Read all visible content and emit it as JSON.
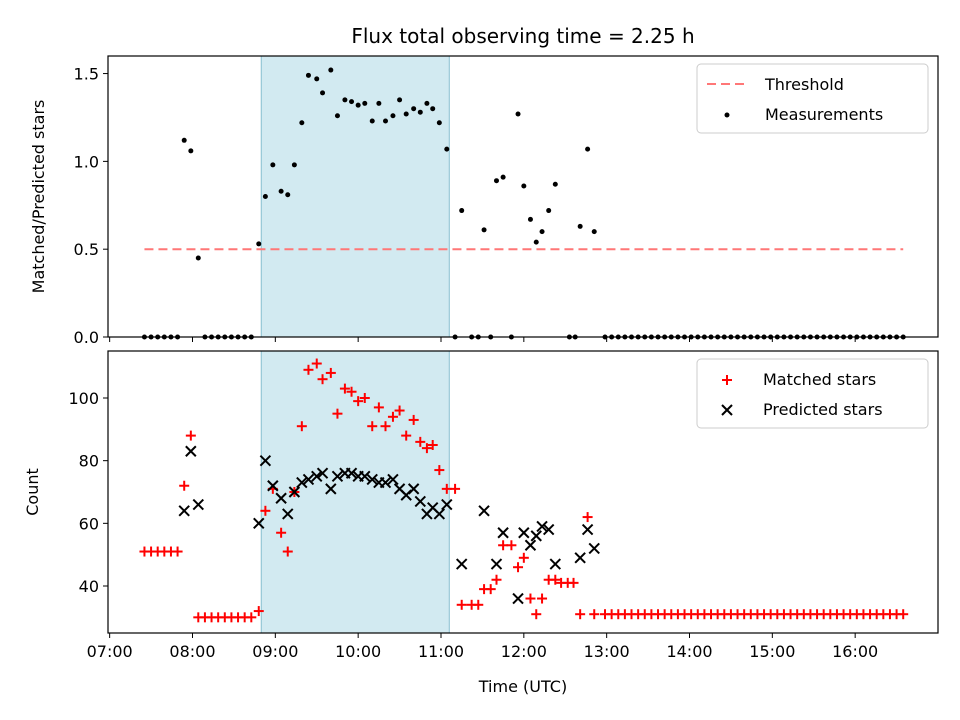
{
  "chart_data": [
    {
      "type": "scatter",
      "title": "Flux total observing time = 2.25 h",
      "xlabel": "",
      "ylabel": "Matched/Predicted stars",
      "xlim": [
        6.98,
        17.0
      ],
      "ylim": [
        0,
        1.6
      ],
      "yticks": [
        "0.0",
        "0.5",
        "1.0",
        "1.5"
      ],
      "shaded_span": [
        8.83,
        11.1
      ],
      "threshold": {
        "name": "Threshold",
        "y": 0.5,
        "x_range": [
          7.42,
          16.58
        ],
        "color": "#ff7777"
      },
      "legend": {
        "position": "top-right",
        "entries": [
          "Threshold",
          "Measurements"
        ]
      },
      "series": [
        {
          "name": "Measurements",
          "color": "#000000",
          "points": [
            [
              7.42,
              0
            ],
            [
              7.5,
              0
            ],
            [
              7.58,
              0
            ],
            [
              7.66,
              0
            ],
            [
              7.74,
              0
            ],
            [
              7.82,
              0
            ],
            [
              7.9,
              1.12
            ],
            [
              7.98,
              1.06
            ],
            [
              8.07,
              0.45
            ],
            [
              8.15,
              0
            ],
            [
              8.23,
              0
            ],
            [
              8.31,
              0
            ],
            [
              8.39,
              0
            ],
            [
              8.47,
              0
            ],
            [
              8.55,
              0
            ],
            [
              8.63,
              0
            ],
            [
              8.71,
              0
            ],
            [
              8.8,
              0.53
            ],
            [
              8.88,
              0.8
            ],
            [
              8.97,
              0.98
            ],
            [
              9.07,
              0.83
            ],
            [
              9.15,
              0.81
            ],
            [
              9.23,
              0.98
            ],
            [
              9.32,
              1.22
            ],
            [
              9.4,
              1.49
            ],
            [
              9.5,
              1.47
            ],
            [
              9.57,
              1.39
            ],
            [
              9.67,
              1.52
            ],
            [
              9.75,
              1.26
            ],
            [
              9.84,
              1.35
            ],
            [
              9.92,
              1.34
            ],
            [
              10.0,
              1.32
            ],
            [
              10.08,
              1.33
            ],
            [
              10.17,
              1.23
            ],
            [
              10.25,
              1.33
            ],
            [
              10.33,
              1.23
            ],
            [
              10.42,
              1.26
            ],
            [
              10.5,
              1.35
            ],
            [
              10.58,
              1.27
            ],
            [
              10.67,
              1.3
            ],
            [
              10.75,
              1.28
            ],
            [
              10.83,
              1.33
            ],
            [
              10.9,
              1.3
            ],
            [
              10.98,
              1.22
            ],
            [
              11.07,
              1.07
            ],
            [
              11.17,
              0
            ],
            [
              11.25,
              0.72
            ],
            [
              11.37,
              0
            ],
            [
              11.45,
              0
            ],
            [
              11.52,
              0.61
            ],
            [
              11.6,
              0
            ],
            [
              11.67,
              0.89
            ],
            [
              11.75,
              0.91
            ],
            [
              11.85,
              0
            ],
            [
              11.93,
              1.27
            ],
            [
              12.0,
              0.86
            ],
            [
              12.08,
              0.67
            ],
            [
              12.15,
              0.54
            ],
            [
              12.22,
              0.6
            ],
            [
              12.3,
              0.72
            ],
            [
              12.38,
              0.87
            ],
            [
              12.55,
              0
            ],
            [
              12.62,
              0
            ],
            [
              12.68,
              0.63
            ],
            [
              12.77,
              1.07
            ],
            [
              12.85,
              0.6
            ],
            [
              12.98,
              0
            ],
            [
              13.06,
              0
            ],
            [
              13.14,
              0
            ],
            [
              13.22,
              0
            ],
            [
              13.3,
              0
            ],
            [
              13.38,
              0
            ],
            [
              13.46,
              0
            ],
            [
              13.54,
              0
            ],
            [
              13.62,
              0
            ],
            [
              13.7,
              0
            ],
            [
              13.78,
              0
            ],
            [
              13.86,
              0
            ],
            [
              13.94,
              0
            ],
            [
              14.02,
              0
            ],
            [
              14.1,
              0
            ],
            [
              14.18,
              0
            ],
            [
              14.26,
              0
            ],
            [
              14.34,
              0
            ],
            [
              14.42,
              0
            ],
            [
              14.5,
              0
            ],
            [
              14.58,
              0
            ],
            [
              14.66,
              0
            ],
            [
              14.74,
              0
            ],
            [
              14.82,
              0
            ],
            [
              14.9,
              0
            ],
            [
              14.98,
              0
            ],
            [
              15.06,
              0
            ],
            [
              15.14,
              0
            ],
            [
              15.22,
              0
            ],
            [
              15.3,
              0
            ],
            [
              15.38,
              0
            ],
            [
              15.46,
              0
            ],
            [
              15.54,
              0
            ],
            [
              15.62,
              0
            ],
            [
              15.7,
              0
            ],
            [
              15.78,
              0
            ],
            [
              15.86,
              0
            ],
            [
              15.94,
              0
            ],
            [
              16.02,
              0
            ],
            [
              16.1,
              0
            ],
            [
              16.18,
              0
            ],
            [
              16.26,
              0
            ],
            [
              16.34,
              0
            ],
            [
              16.42,
              0
            ],
            [
              16.5,
              0
            ],
            [
              16.58,
              0
            ]
          ]
        }
      ]
    },
    {
      "type": "scatter",
      "title": "",
      "xlabel": "Time (UTC)",
      "ylabel": "Count",
      "xlim": [
        6.98,
        17.0
      ],
      "ylim": [
        25,
        115
      ],
      "yticks": [
        "40",
        "60",
        "80",
        "100"
      ],
      "xticks": [
        "07:00",
        "08:00",
        "09:00",
        "10:00",
        "11:00",
        "12:00",
        "13:00",
        "14:00",
        "15:00",
        "16:00"
      ],
      "shaded_span": [
        8.83,
        11.1
      ],
      "legend": {
        "position": "top-right",
        "entries": [
          "Matched stars",
          "Predicted stars"
        ]
      },
      "series": [
        {
          "name": "Matched stars",
          "marker": "+",
          "color": "#ff0000",
          "points": [
            [
              7.42,
              51
            ],
            [
              7.5,
              51
            ],
            [
              7.58,
              51
            ],
            [
              7.66,
              51
            ],
            [
              7.74,
              51
            ],
            [
              7.82,
              51
            ],
            [
              7.9,
              72
            ],
            [
              7.98,
              88
            ],
            [
              8.07,
              30
            ],
            [
              8.15,
              30
            ],
            [
              8.23,
              30
            ],
            [
              8.31,
              30
            ],
            [
              8.39,
              30
            ],
            [
              8.47,
              30
            ],
            [
              8.55,
              30
            ],
            [
              8.63,
              30
            ],
            [
              8.71,
              30
            ],
            [
              8.8,
              32
            ],
            [
              8.88,
              64
            ],
            [
              8.97,
              71
            ],
            [
              9.07,
              57
            ],
            [
              9.15,
              51
            ],
            [
              9.23,
              70
            ],
            [
              9.32,
              91
            ],
            [
              9.4,
              109
            ],
            [
              9.5,
              111
            ],
            [
              9.57,
              106
            ],
            [
              9.67,
              108
            ],
            [
              9.75,
              95
            ],
            [
              9.84,
              103
            ],
            [
              9.92,
              102
            ],
            [
              10.0,
              99
            ],
            [
              10.08,
              100
            ],
            [
              10.17,
              91
            ],
            [
              10.25,
              97
            ],
            [
              10.33,
              91
            ],
            [
              10.42,
              94
            ],
            [
              10.5,
              96
            ],
            [
              10.58,
              88
            ],
            [
              10.67,
              93
            ],
            [
              10.75,
              86
            ],
            [
              10.83,
              84
            ],
            [
              10.9,
              85
            ],
            [
              10.98,
              77
            ],
            [
              11.07,
              71
            ],
            [
              11.17,
              71
            ],
            [
              11.25,
              34
            ],
            [
              11.37,
              34
            ],
            [
              11.45,
              34
            ],
            [
              11.52,
              39
            ],
            [
              11.6,
              39
            ],
            [
              11.67,
              42
            ],
            [
              11.75,
              53
            ],
            [
              11.85,
              53
            ],
            [
              11.93,
              46
            ],
            [
              12.0,
              49
            ],
            [
              12.08,
              36
            ],
            [
              12.15,
              31
            ],
            [
              12.22,
              36
            ],
            [
              12.3,
              42
            ],
            [
              12.38,
              42
            ],
            [
              12.45,
              41
            ],
            [
              12.53,
              41
            ],
            [
              12.6,
              41
            ],
            [
              12.68,
              31
            ],
            [
              12.77,
              62
            ],
            [
              12.85,
              31
            ],
            [
              12.98,
              31
            ],
            [
              13.06,
              31
            ],
            [
              13.14,
              31
            ],
            [
              13.22,
              31
            ],
            [
              13.3,
              31
            ],
            [
              13.38,
              31
            ],
            [
              13.46,
              31
            ],
            [
              13.54,
              31
            ],
            [
              13.62,
              31
            ],
            [
              13.7,
              31
            ],
            [
              13.78,
              31
            ],
            [
              13.86,
              31
            ],
            [
              13.94,
              31
            ],
            [
              14.02,
              31
            ],
            [
              14.1,
              31
            ],
            [
              14.18,
              31
            ],
            [
              14.26,
              31
            ],
            [
              14.34,
              31
            ],
            [
              14.42,
              31
            ],
            [
              14.5,
              31
            ],
            [
              14.58,
              31
            ],
            [
              14.66,
              31
            ],
            [
              14.74,
              31
            ],
            [
              14.82,
              31
            ],
            [
              14.9,
              31
            ],
            [
              14.98,
              31
            ],
            [
              15.06,
              31
            ],
            [
              15.14,
              31
            ],
            [
              15.22,
              31
            ],
            [
              15.3,
              31
            ],
            [
              15.38,
              31
            ],
            [
              15.46,
              31
            ],
            [
              15.54,
              31
            ],
            [
              15.62,
              31
            ],
            [
              15.7,
              31
            ],
            [
              15.78,
              31
            ],
            [
              15.86,
              31
            ],
            [
              15.94,
              31
            ],
            [
              16.02,
              31
            ],
            [
              16.1,
              31
            ],
            [
              16.18,
              31
            ],
            [
              16.26,
              31
            ],
            [
              16.34,
              31
            ],
            [
              16.42,
              31
            ],
            [
              16.5,
              31
            ],
            [
              16.58,
              31
            ]
          ]
        },
        {
          "name": "Predicted stars",
          "marker": "x",
          "color": "#000000",
          "points": [
            [
              7.9,
              64
            ],
            [
              7.98,
              83
            ],
            [
              8.07,
              66
            ],
            [
              8.8,
              60
            ],
            [
              8.88,
              80
            ],
            [
              8.97,
              72
            ],
            [
              9.07,
              68
            ],
            [
              9.15,
              63
            ],
            [
              9.23,
              70
            ],
            [
              9.32,
              73
            ],
            [
              9.4,
              74
            ],
            [
              9.5,
              75
            ],
            [
              9.57,
              76
            ],
            [
              9.67,
              71
            ],
            [
              9.75,
              75
            ],
            [
              9.84,
              76
            ],
            [
              9.92,
              76
            ],
            [
              10.0,
              75
            ],
            [
              10.08,
              75
            ],
            [
              10.17,
              74
            ],
            [
              10.25,
              73
            ],
            [
              10.33,
              73
            ],
            [
              10.42,
              74
            ],
            [
              10.5,
              71
            ],
            [
              10.58,
              69
            ],
            [
              10.67,
              71
            ],
            [
              10.75,
              67
            ],
            [
              10.83,
              63
            ],
            [
              10.9,
              65
            ],
            [
              10.98,
              63
            ],
            [
              11.07,
              66
            ],
            [
              11.25,
              47
            ],
            [
              11.52,
              64
            ],
            [
              11.67,
              47
            ],
            [
              11.75,
              57
            ],
            [
              11.93,
              36
            ],
            [
              12.0,
              57
            ],
            [
              12.08,
              53
            ],
            [
              12.15,
              56
            ],
            [
              12.22,
              59
            ],
            [
              12.3,
              58
            ],
            [
              12.38,
              47
            ],
            [
              12.68,
              49
            ],
            [
              12.77,
              58
            ],
            [
              12.85,
              52
            ]
          ]
        }
      ]
    }
  ]
}
